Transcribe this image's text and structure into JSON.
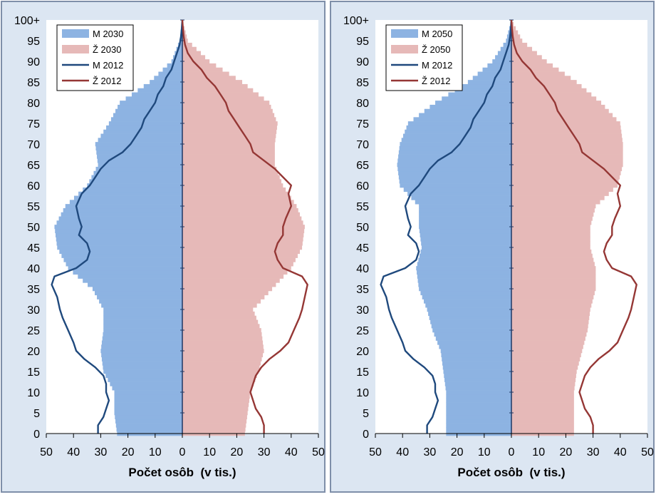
{
  "chart_data": [
    {
      "type": "bar",
      "orientation": "horizontal-pyramid",
      "xlabel": "Počet osôb  (v tis.)",
      "x_tick_labels": [
        "50",
        "40",
        "30",
        "20",
        "10",
        "0",
        "10",
        "20",
        "30",
        "40",
        "50"
      ],
      "y_tick_labels": [
        "0",
        "5",
        "10",
        "15",
        "20",
        "25",
        "30",
        "35",
        "40",
        "45",
        "50",
        "55",
        "60",
        "65",
        "70",
        "75",
        "80",
        "85",
        "90",
        "95",
        "100+"
      ],
      "xlim": [
        -50,
        50
      ],
      "ylim": [
        0,
        100
      ],
      "legend_position": "top-left",
      "colors": {
        "male_bar": "#8db3e2",
        "female_bar": "#e6b9b8",
        "male_line": "#1f497d",
        "female_line": "#953735"
      },
      "series": [
        {
          "name": "M 2030",
          "kind": "bar",
          "side": "left",
          "age": [
            0,
            5,
            10,
            15,
            20,
            25,
            30,
            35,
            40,
            45,
            50,
            55,
            60,
            65,
            70,
            75,
            80,
            85,
            90,
            95,
            100
          ],
          "values": [
            24,
            25,
            25,
            29,
            30,
            29,
            29,
            33,
            42,
            46,
            47,
            43,
            35,
            31,
            32,
            27,
            23,
            12,
            4,
            1,
            0
          ]
        },
        {
          "name": "Ž 2030",
          "kind": "bar",
          "side": "right",
          "age": [
            0,
            5,
            10,
            15,
            20,
            25,
            30,
            35,
            40,
            45,
            50,
            55,
            60,
            65,
            70,
            75,
            80,
            85,
            90,
            95,
            100
          ],
          "values": [
            23,
            24,
            25,
            28,
            30,
            29,
            26,
            33,
            40,
            44,
            45,
            42,
            37,
            34,
            34,
            35,
            32,
            22,
            10,
            2,
            0
          ]
        },
        {
          "name": "M 2012",
          "kind": "line",
          "side": "left",
          "age": [
            0,
            2,
            4,
            6,
            8,
            10,
            12,
            14,
            16,
            18,
            20,
            22,
            25,
            28,
            30,
            33,
            36,
            38,
            40,
            42,
            44,
            46,
            48,
            50,
            52,
            55,
            58,
            60,
            62,
            64,
            66,
            68,
            70,
            72,
            74,
            76,
            78,
            80,
            82,
            84,
            86,
            88,
            90,
            92,
            94,
            96,
            98,
            100
          ],
          "values": [
            31,
            31,
            29,
            28,
            27,
            28,
            28,
            29,
            32,
            36,
            39,
            40,
            42,
            44,
            45,
            46,
            48,
            47,
            39,
            35,
            34,
            35,
            38,
            37,
            38,
            39,
            37,
            34,
            32,
            30,
            27,
            22,
            19,
            17,
            15,
            14,
            12,
            10,
            9,
            7,
            6,
            4,
            3,
            2,
            1,
            0.5,
            0.2,
            0
          ]
        },
        {
          "name": "Ž 2012",
          "kind": "line",
          "side": "right",
          "age": [
            0,
            2,
            4,
            6,
            8,
            10,
            12,
            14,
            16,
            18,
            20,
            22,
            25,
            28,
            30,
            33,
            36,
            38,
            40,
            42,
            44,
            46,
            48,
            50,
            52,
            55,
            58,
            60,
            62,
            64,
            66,
            68,
            70,
            72,
            74,
            76,
            78,
            80,
            82,
            84,
            86,
            88,
            90,
            92,
            94,
            96,
            98,
            100
          ],
          "values": [
            30,
            30,
            29,
            27,
            26,
            25,
            26,
            27,
            29,
            32,
            36,
            39,
            41,
            43,
            44,
            45,
            46,
            44,
            37,
            35,
            34,
            35,
            37,
            37,
            38,
            40,
            39,
            40,
            37,
            34,
            30,
            26,
            25,
            23,
            21,
            19,
            17,
            16,
            14,
            12,
            9,
            7,
            4,
            2,
            1,
            0.5,
            0.2,
            0
          ]
        }
      ]
    },
    {
      "type": "bar",
      "orientation": "horizontal-pyramid",
      "xlabel": "Počet osôb  (v tis.)",
      "x_tick_labels": [
        "50",
        "40",
        "30",
        "20",
        "10",
        "0",
        "10",
        "20",
        "30",
        "40",
        "50"
      ],
      "y_tick_labels": [
        "0",
        "5",
        "10",
        "15",
        "20",
        "25",
        "30",
        "35",
        "40",
        "45",
        "50",
        "55",
        "60",
        "65",
        "70",
        "75",
        "80",
        "85",
        "90",
        "95",
        "100+"
      ],
      "xlim": [
        -50,
        50
      ],
      "ylim": [
        0,
        100
      ],
      "legend_position": "top-left",
      "colors": {
        "male_bar": "#8db3e2",
        "female_bar": "#e6b9b8",
        "male_line": "#1f497d",
        "female_line": "#953735"
      },
      "series": [
        {
          "name": "M 2050",
          "kind": "bar",
          "side": "left",
          "age": [
            0,
            5,
            10,
            15,
            20,
            25,
            30,
            35,
            40,
            45,
            50,
            55,
            60,
            65,
            70,
            75,
            80,
            85,
            90,
            95,
            100
          ],
          "values": [
            24,
            24,
            24,
            25,
            26,
            29,
            31,
            34,
            35,
            33,
            34,
            34,
            41,
            42,
            41,
            38,
            28,
            16,
            7,
            2,
            0
          ]
        },
        {
          "name": "Ž 2050",
          "kind": "bar",
          "side": "right",
          "age": [
            0,
            5,
            10,
            15,
            20,
            25,
            30,
            35,
            40,
            45,
            50,
            55,
            60,
            65,
            70,
            75,
            80,
            85,
            90,
            95,
            100
          ],
          "values": [
            23,
            23,
            23,
            24,
            26,
            28,
            29,
            31,
            31,
            29,
            29,
            31,
            39,
            41,
            41,
            40,
            33,
            24,
            13,
            4,
            0
          ]
        },
        {
          "name": "M 2012",
          "kind": "line",
          "side": "left",
          "age": [
            0,
            2,
            4,
            6,
            8,
            10,
            12,
            14,
            16,
            18,
            20,
            22,
            25,
            28,
            30,
            33,
            36,
            38,
            40,
            42,
            44,
            46,
            48,
            50,
            52,
            55,
            58,
            60,
            62,
            64,
            66,
            68,
            70,
            72,
            74,
            76,
            78,
            80,
            82,
            84,
            86,
            88,
            90,
            92,
            94,
            96,
            98,
            100
          ],
          "values": [
            31,
            31,
            29,
            28,
            27,
            28,
            28,
            29,
            32,
            36,
            39,
            40,
            42,
            44,
            45,
            46,
            48,
            47,
            39,
            35,
            34,
            35,
            38,
            37,
            38,
            39,
            37,
            34,
            32,
            30,
            27,
            22,
            19,
            17,
            15,
            14,
            12,
            10,
            9,
            7,
            6,
            4,
            3,
            2,
            1,
            0.5,
            0.2,
            0
          ]
        },
        {
          "name": "Ž 2012",
          "kind": "line",
          "side": "right",
          "age": [
            0,
            2,
            4,
            6,
            8,
            10,
            12,
            14,
            16,
            18,
            20,
            22,
            25,
            28,
            30,
            33,
            36,
            38,
            40,
            42,
            44,
            46,
            48,
            50,
            52,
            55,
            58,
            60,
            62,
            64,
            66,
            68,
            70,
            72,
            74,
            76,
            78,
            80,
            82,
            84,
            86,
            88,
            90,
            92,
            94,
            96,
            98,
            100
          ],
          "values": [
            30,
            30,
            29,
            27,
            26,
            25,
            26,
            27,
            29,
            32,
            36,
            39,
            41,
            43,
            44,
            45,
            46,
            44,
            37,
            35,
            34,
            35,
            37,
            37,
            38,
            40,
            39,
            40,
            37,
            34,
            30,
            26,
            25,
            23,
            21,
            19,
            17,
            16,
            14,
            12,
            9,
            7,
            4,
            2,
            1,
            0.5,
            0.2,
            0
          ]
        }
      ]
    }
  ]
}
